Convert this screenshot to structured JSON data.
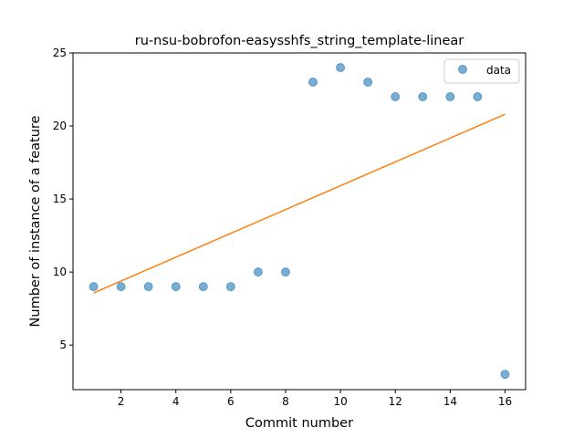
{
  "chart_data": {
    "type": "scatter",
    "title": "ru-nsu-bobrofon-easysshfs_string_template-linear",
    "xlabel": "Commit number",
    "ylabel": "Number of instance of a feature",
    "xlim": [
      0.25,
      16.75
    ],
    "ylim": [
      1.95,
      25.0
    ],
    "xticks": [
      2,
      4,
      6,
      8,
      10,
      12,
      14,
      16
    ],
    "yticks": [
      5,
      10,
      15,
      20,
      25
    ],
    "legend_position": "top-right",
    "series": [
      {
        "name": "data",
        "kind": "scatter",
        "color": "#1f77b4",
        "x": [
          1,
          2,
          3,
          4,
          5,
          6,
          7,
          8,
          9,
          10,
          11,
          12,
          13,
          14,
          15,
          16
        ],
        "y": [
          9,
          9,
          9,
          9,
          9,
          9,
          10,
          10,
          23,
          24,
          23,
          22,
          22,
          22,
          22,
          3
        ]
      },
      {
        "kind": "line",
        "color": "#ff7f0e",
        "x": [
          1,
          16
        ],
        "y": [
          8.57,
          20.8
        ]
      }
    ]
  }
}
